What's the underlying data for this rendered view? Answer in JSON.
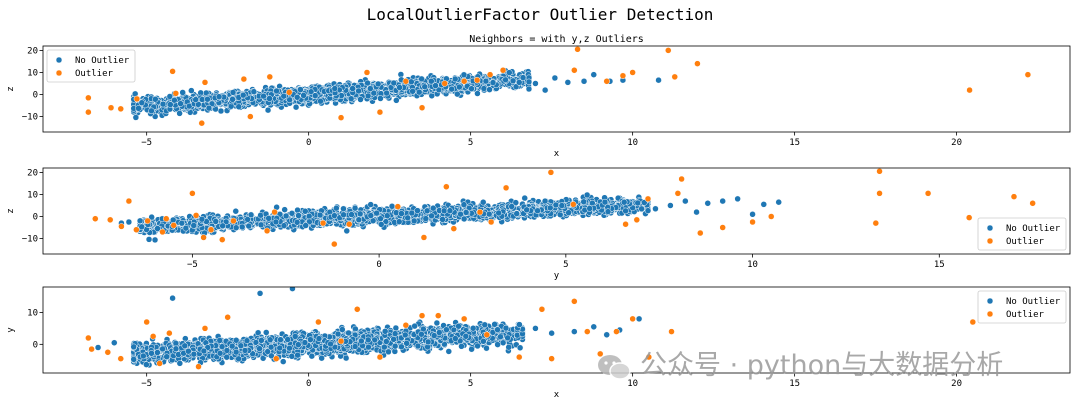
{
  "suptitle": "LocalOutlierFactor Outlier Detection",
  "subtitle": "Neighbors = with y,z Outliers",
  "watermark": "公众号 · python与大数据分析",
  "colors": {
    "inlier": "#1f77b4",
    "outlier": "#ff7f0e",
    "inlier_edge": "#ffffff"
  },
  "chart_data": [
    {
      "type": "scatter",
      "title": "Neighbors = with y,z Outliers",
      "xlabel": "x",
      "ylabel": "z",
      "xlim": [
        -8.2,
        23.5
      ],
      "ylim": [
        -17,
        22
      ],
      "xticks": [
        -5,
        0,
        5,
        10,
        15,
        20
      ],
      "yticks": [
        -10,
        0,
        10,
        20
      ],
      "grid": false,
      "legend": {
        "position": "upper left",
        "entries": [
          "No Outlier",
          "Outlier"
        ]
      },
      "series": [
        {
          "name": "No Outlier",
          "cloud": {
            "x_min": -5.4,
            "x_max": 6.8,
            "slope": 1.0,
            "intercept": 0,
            "spread": 3.0
          },
          "points": [
            [
              7.0,
              5.0
            ],
            [
              7.3,
              2.0
            ],
            [
              7.6,
              7.5
            ],
            [
              8.0,
              5.5
            ],
            [
              8.5,
              6.0
            ],
            [
              8.8,
              9.0
            ],
            [
              9.3,
              6.0
            ],
            [
              9.7,
              6.5
            ],
            [
              10.8,
              6.5
            ],
            [
              6.5,
              5.5
            ],
            [
              6.8,
              2.5
            ]
          ]
        },
        {
          "name": "Outlier",
          "points": [
            [
              -6.8,
              -1.5
            ],
            [
              -6.8,
              -8.0
            ],
            [
              -6.1,
              -6.0
            ],
            [
              -5.8,
              -6.5
            ],
            [
              -5.3,
              -2.0
            ],
            [
              -4.2,
              10.5
            ],
            [
              -4.1,
              0.5
            ],
            [
              -3.3,
              -13.0
            ],
            [
              -3.2,
              5.5
            ],
            [
              -2.0,
              7.0
            ],
            [
              -1.8,
              -10.0
            ],
            [
              -1.2,
              8.0
            ],
            [
              -0.6,
              1.0
            ],
            [
              1.0,
              -10.5
            ],
            [
              1.8,
              10.0
            ],
            [
              2.2,
              -8.0
            ],
            [
              3.0,
              6.0
            ],
            [
              3.5,
              -6.0
            ],
            [
              4.2,
              5.0
            ],
            [
              4.8,
              6.0
            ],
            [
              5.2,
              6.5
            ],
            [
              5.6,
              9.0
            ],
            [
              6.0,
              11.0
            ],
            [
              8.2,
              11.0
            ],
            [
              8.3,
              20.5
            ],
            [
              9.2,
              6.0
            ],
            [
              9.7,
              8.5
            ],
            [
              10.0,
              10.0
            ],
            [
              11.1,
              20.0
            ],
            [
              11.3,
              8.0
            ],
            [
              12.0,
              14.0
            ],
            [
              20.4,
              2.0
            ],
            [
              22.2,
              9.0
            ]
          ]
        }
      ]
    },
    {
      "type": "scatter",
      "xlabel": "y",
      "ylabel": "z",
      "xlim": [
        -9.0,
        18.5
      ],
      "ylim": [
        -17,
        22
      ],
      "xticks": [
        -5,
        0,
        5,
        10,
        15
      ],
      "yticks": [
        -10,
        0,
        10,
        20
      ],
      "grid": false,
      "legend": {
        "position": "lower right",
        "entries": [
          "No Outlier",
          "Outlier"
        ]
      },
      "series": [
        {
          "name": "No Outlier",
          "cloud": {
            "x_min": -6.4,
            "x_max": 7.2,
            "slope": 0.7,
            "intercept": 0,
            "spread": 3.0
          },
          "points": [
            [
              7.4,
              3.5
            ],
            [
              7.8,
              5.0
            ],
            [
              8.2,
              7.0
            ],
            [
              8.5,
              2.0
            ],
            [
              8.8,
              6.0
            ],
            [
              9.2,
              7.0
            ],
            [
              9.6,
              8.0
            ],
            [
              10.0,
              1.0
            ],
            [
              10.3,
              5.5
            ],
            [
              10.7,
              6.5
            ],
            [
              -6.9,
              -3.0
            ],
            [
              -6.7,
              -2.5
            ]
          ]
        },
        {
          "name": "Outlier",
          "points": [
            [
              -7.6,
              -1.0
            ],
            [
              -7.2,
              -1.5
            ],
            [
              -6.9,
              -4.5
            ],
            [
              -6.7,
              7.0
            ],
            [
              -6.5,
              -6.0
            ],
            [
              -6.2,
              -2.0
            ],
            [
              -5.8,
              -7.0
            ],
            [
              -5.7,
              -1.0
            ],
            [
              -5.5,
              -4.0
            ],
            [
              -5.0,
              10.5
            ],
            [
              -4.9,
              0.5
            ],
            [
              -4.7,
              -9.5
            ],
            [
              -4.5,
              -6.0
            ],
            [
              -4.2,
              -10.5
            ],
            [
              -3.9,
              -2.0
            ],
            [
              -3.0,
              -6.5
            ],
            [
              -2.8,
              2.0
            ],
            [
              -1.2,
              -12.5
            ],
            [
              -1.5,
              -3.0
            ],
            [
              -0.8,
              -3.5
            ],
            [
              0.5,
              4.5
            ],
            [
              1.2,
              -9.5
            ],
            [
              2.0,
              -5.5
            ],
            [
              1.8,
              13.5
            ],
            [
              2.7,
              2.0
            ],
            [
              3.0,
              -2.5
            ],
            [
              3.4,
              13.0
            ],
            [
              4.6,
              20.0
            ],
            [
              5.2,
              5.5
            ],
            [
              6.6,
              -3.5
            ],
            [
              6.9,
              -1.5
            ],
            [
              7.2,
              8.0
            ],
            [
              8.0,
              10.5
            ],
            [
              8.1,
              17.0
            ],
            [
              8.6,
              -7.5
            ],
            [
              9.2,
              -5.0
            ],
            [
              10.0,
              -2.5
            ],
            [
              10.5,
              0.0
            ],
            [
              13.3,
              -3.0
            ],
            [
              13.4,
              20.5
            ],
            [
              13.4,
              10.5
            ],
            [
              14.7,
              10.5
            ],
            [
              15.8,
              -0.5
            ],
            [
              17.0,
              9.0
            ],
            [
              17.5,
              6.0
            ]
          ]
        }
      ]
    },
    {
      "type": "scatter",
      "xlabel": "x",
      "ylabel": "y",
      "xlim": [
        -8.2,
        23.5
      ],
      "ylim": [
        -9,
        18
      ],
      "xticks": [
        -5,
        0,
        5,
        10,
        15,
        20
      ],
      "yticks": [
        0,
        10
      ],
      "grid": false,
      "legend": {
        "position": "upper right",
        "entries": [
          "No Outlier",
          "Outlier"
        ]
      },
      "series": [
        {
          "name": "No Outlier",
          "cloud": {
            "x_min": -5.4,
            "x_max": 6.6,
            "slope": 0.55,
            "intercept": 0,
            "spread": 2.9
          },
          "points": [
            [
              -4.2,
              14.5
            ],
            [
              -1.5,
              16.0
            ],
            [
              -0.5,
              17.5
            ],
            [
              -6.5,
              -1.0
            ],
            [
              -6.0,
              0.5
            ],
            [
              7.0,
              5.0
            ],
            [
              7.5,
              3.5
            ],
            [
              8.2,
              4.0
            ],
            [
              8.8,
              5.5
            ],
            [
              9.2,
              3.0
            ],
            [
              9.6,
              4.5
            ],
            [
              10.2,
              8.0
            ]
          ]
        },
        {
          "name": "Outlier",
          "points": [
            [
              -6.8,
              2.0
            ],
            [
              -6.7,
              -1.5
            ],
            [
              -6.2,
              -2.5
            ],
            [
              -5.8,
              -4.5
            ],
            [
              -5.0,
              7.0
            ],
            [
              -4.8,
              2.5
            ],
            [
              -4.6,
              -6.0
            ],
            [
              -4.3,
              3.5
            ],
            [
              -3.4,
              -7.0
            ],
            [
              -3.2,
              5.0
            ],
            [
              -2.5,
              8.5
            ],
            [
              -1.0,
              -4.5
            ],
            [
              0.3,
              7.0
            ],
            [
              1.0,
              1.0
            ],
            [
              1.5,
              11.0
            ],
            [
              2.2,
              -4.0
            ],
            [
              3.0,
              6.0
            ],
            [
              3.5,
              9.0
            ],
            [
              4.0,
              9.0
            ],
            [
              4.8,
              8.0
            ],
            [
              5.5,
              3.0
            ],
            [
              6.5,
              -4.0
            ],
            [
              7.2,
              11.0
            ],
            [
              7.5,
              -4.5
            ],
            [
              8.2,
              13.5
            ],
            [
              8.6,
              4.0
            ],
            [
              9.0,
              -3.0
            ],
            [
              9.5,
              4.0
            ],
            [
              10.0,
              8.0
            ],
            [
              10.5,
              -4.0
            ],
            [
              11.2,
              4.0
            ],
            [
              20.5,
              7.0
            ]
          ]
        }
      ]
    }
  ]
}
